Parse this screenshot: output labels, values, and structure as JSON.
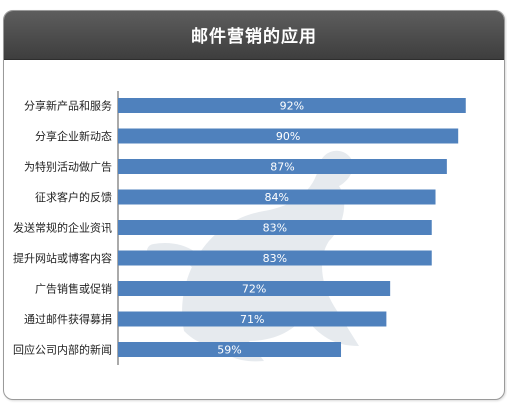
{
  "title": "邮件营销的应用",
  "chart_data": {
    "type": "bar",
    "orientation": "horizontal",
    "title": "邮件营销的应用",
    "categories": [
      "分享新产品和服务",
      "分享企业新动态",
      "为特别活动做广告",
      "征求客户的反馈",
      "发送常规的企业资讯",
      "提升网站或博客内容",
      "广告销售或促销",
      "通过邮件获得募捐",
      "回应公司内部的新闻"
    ],
    "values": [
      92,
      90,
      87,
      84,
      83,
      83,
      72,
      71,
      59
    ],
    "value_labels": [
      "92%",
      "90%",
      "87%",
      "84%",
      "83%",
      "83%",
      "72%",
      "71%",
      "59%"
    ],
    "unit": "%",
    "xlim": [
      0,
      100
    ],
    "bar_color": "#4f81bd",
    "grid": false,
    "legend": "none"
  },
  "colors": {
    "header_bg": "#4a4a4a",
    "header_text": "#ffffff",
    "bar": "#4f81bd"
  },
  "watermark_icon": "kangaroo-watermark-icon"
}
